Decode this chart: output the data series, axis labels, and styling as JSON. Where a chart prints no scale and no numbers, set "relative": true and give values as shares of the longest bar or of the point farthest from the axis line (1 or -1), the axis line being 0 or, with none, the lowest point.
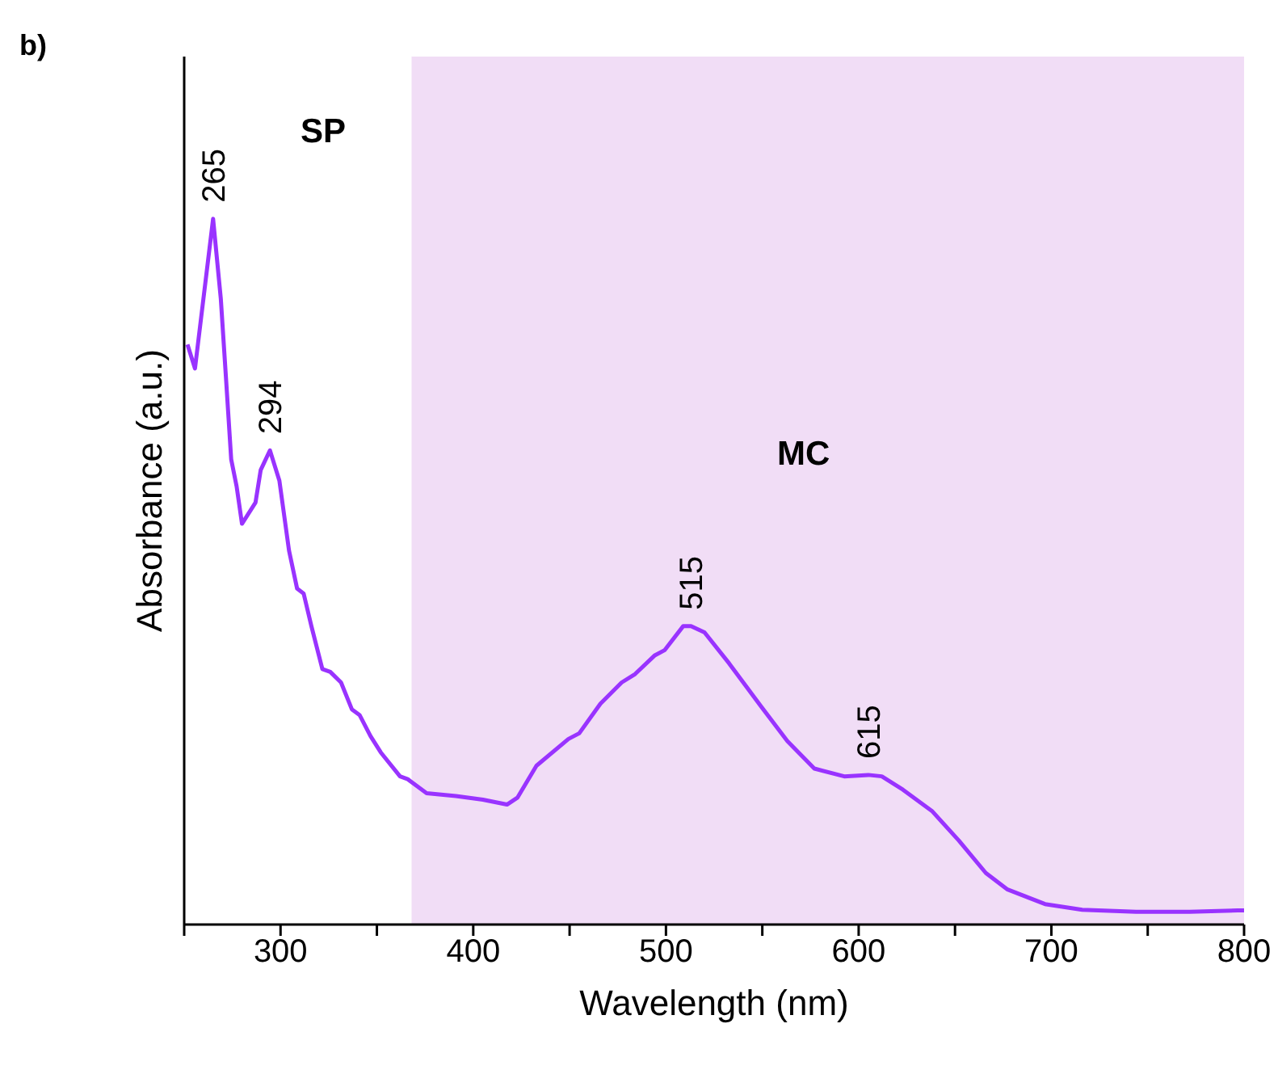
{
  "chart_data": {
    "type": "line",
    "title": "b)",
    "xlabel": "Wavelength (nm)",
    "ylabel": "Absorbance (a.u.)",
    "relative": true,
    "x": [
      251.7,
      255.6,
      265,
      269,
      271.7,
      274.4,
      277.2,
      280,
      287,
      289.7,
      294.5,
      299.4,
      304.4,
      308.6,
      312,
      316,
      321.7,
      325.8,
      331.4,
      337,
      341,
      346.7,
      352,
      362,
      366,
      375.8,
      391,
      405,
      417.5,
      423,
      432.8,
      449.4,
      455,
      466,
      477,
      484,
      494,
      499.4,
      509,
      513,
      520,
      532.8,
      549.4,
      563,
      577,
      592.5,
      605,
      612,
      623,
      638,
      652,
      666,
      677,
      696.7,
      716,
      744,
      771.7,
      796.7,
      800
    ],
    "series": [
      {
        "color": "#9933ff",
        "values": [
          0.822,
          0.788,
          1,
          0.887,
          0.774,
          0.659,
          0.621,
          0.568,
          0.598,
          0.644,
          0.672,
          0.629,
          0.53,
          0.476,
          0.469,
          0.423,
          0.362,
          0.358,
          0.343,
          0.305,
          0.297,
          0.267,
          0.244,
          0.21,
          0.206,
          0.186,
          0.182,
          0.177,
          0.17,
          0.18,
          0.225,
          0.263,
          0.271,
          0.313,
          0.343,
          0.355,
          0.381,
          0.389,
          0.423,
          0.423,
          0.414,
          0.37,
          0.309,
          0.26,
          0.221,
          0.21,
          0.212,
          0.21,
          0.191,
          0.161,
          0.119,
          0.073,
          0.05,
          0.029,
          0.021,
          0.018,
          0.018,
          0.02,
          0.02
        ]
      }
    ],
    "xlim": [
      250,
      800
    ],
    "xticks": [
      {
        "value": 250,
        "label": null
      },
      300,
      {
        "value": 350,
        "label": null
      },
      400,
      {
        "value": 450,
        "label": null
      },
      500,
      {
        "value": 550,
        "label": null
      },
      600,
      {
        "value": 650,
        "label": null
      },
      700,
      {
        "value": 750,
        "label": null
      },
      800
    ],
    "bands": [
      {
        "axis": "x",
        "from": 368,
        "to": 800,
        "label": "MC",
        "color": "#f1ddf6"
      }
    ],
    "annotations": [
      "SP",
      {
        "text": "265",
        "x": 265,
        "y": 1
      },
      {
        "text": "294",
        "x": 294.5,
        "y": 0.672
      },
      {
        "text": "515",
        "x": 513,
        "y": 0.423
      },
      {
        "text": "615",
        "x": 605,
        "y": 0.212
      }
    ],
    "grid": false,
    "legend": false,
    "line_style": "solid",
    "marker": "none"
  }
}
